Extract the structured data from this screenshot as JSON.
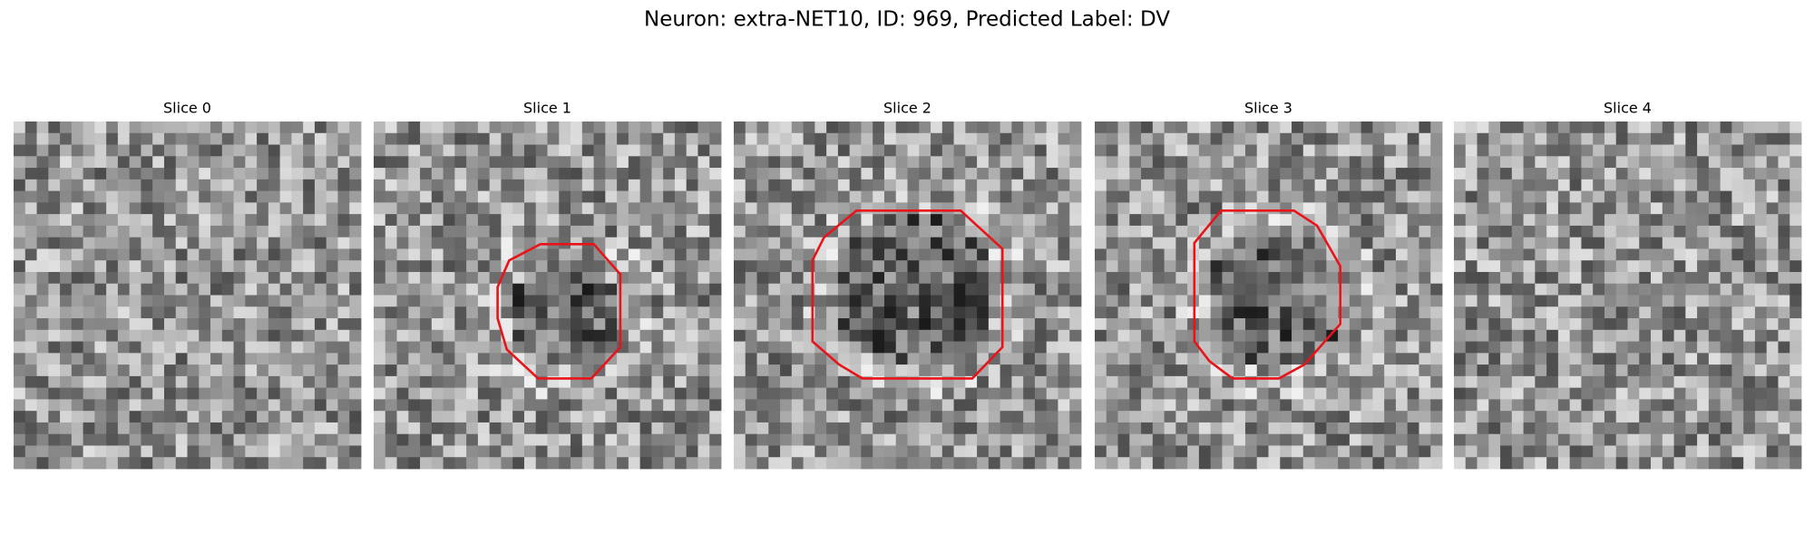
{
  "title": "Neuron: extra-NET10, ID: 969, Predicted Label: DV",
  "panels": [
    {
      "title": "Slice 0"
    },
    {
      "title": "Slice 1"
    },
    {
      "title": "Slice 2"
    },
    {
      "title": "Slice 3"
    },
    {
      "title": "Slice 4"
    }
  ]
}
